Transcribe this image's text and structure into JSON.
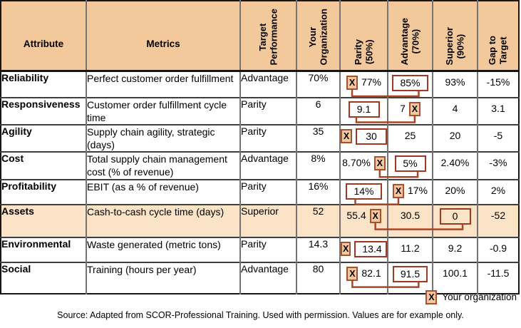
{
  "table": {
    "columns": [
      {
        "id": "attribute",
        "label": "Attribute"
      },
      {
        "id": "metrics",
        "label": "Metrics"
      },
      {
        "id": "target-performance",
        "label": "Target\nPerformance"
      },
      {
        "id": "your-organization",
        "label": "Your\nOrganization"
      },
      {
        "id": "parity",
        "label": "Parity\n(50%)"
      },
      {
        "id": "advantage",
        "label": "Advantage\n(70%)"
      },
      {
        "id": "superior",
        "label": "Superior\n(90%)"
      },
      {
        "id": "gap-to-target",
        "label": "Gap to\nTarget"
      }
    ],
    "rows": [
      {
        "attribute": "Reliability",
        "metrics": "Perfect customer order fulfillment",
        "target": "Advantage",
        "your_org": "70%",
        "highlight": false,
        "connector": true,
        "cells": {
          "parity": {
            "x": "before",
            "value": "77%",
            "boxed": false
          },
          "advantage": {
            "value": "85%",
            "boxed": true
          },
          "superior": {
            "value": "93%",
            "boxed": false
          },
          "gap": {
            "value": "-15%",
            "boxed": false
          }
        }
      },
      {
        "attribute": "Responsiveness",
        "metrics": "Customer order fulfillment cycle time",
        "target": "Parity",
        "your_org": "6",
        "highlight": false,
        "connector": true,
        "cells": {
          "parity": {
            "value": "9.1",
            "boxed": true
          },
          "advantage": {
            "x": "after",
            "value": "7",
            "boxed": false
          },
          "superior": {
            "value": "4",
            "boxed": false
          },
          "gap": {
            "value": "3.1",
            "boxed": false
          }
        }
      },
      {
        "attribute": "Agility",
        "metrics": "Supply chain agility, strategic (days)",
        "target": "Parity",
        "your_org": "35",
        "highlight": false,
        "connector": false,
        "cells": {
          "parity": {
            "x": "before",
            "value": "30",
            "boxed": true
          },
          "advantage": {
            "value": "25",
            "boxed": false
          },
          "superior": {
            "value": "20",
            "boxed": false
          },
          "gap": {
            "value": "-5",
            "boxed": false
          }
        }
      },
      {
        "attribute": "Cost",
        "metrics": "Total supply chain management cost (% of revenue)",
        "target": "Advantage",
        "your_org": "8%",
        "highlight": false,
        "connector": true,
        "cells": {
          "parity": {
            "x": "after",
            "value": "8.70%",
            "boxed": false
          },
          "advantage": {
            "value": "5%",
            "boxed": true
          },
          "superior": {
            "value": "2.40%",
            "boxed": false
          },
          "gap": {
            "value": "-3%",
            "boxed": false
          }
        }
      },
      {
        "attribute": "Profitability",
        "metrics": "EBIT (as a % of revenue)",
        "target": "Parity",
        "your_org": "16%",
        "highlight": false,
        "connector": true,
        "cells": {
          "parity": {
            "value": "14%",
            "boxed": true
          },
          "advantage": {
            "x": "before",
            "value": "17%",
            "boxed": false
          },
          "superior": {
            "value": "20%",
            "boxed": false
          },
          "gap": {
            "value": "2%",
            "boxed": false
          }
        }
      },
      {
        "attribute": "Assets",
        "metrics": "Cash-to-cash cycle time (days)",
        "target": "Superior",
        "your_org": "52",
        "highlight": true,
        "connector": true,
        "cells": {
          "parity": {
            "x": "after",
            "value": "55.4",
            "boxed": false
          },
          "advantage": {
            "value": "30.5",
            "boxed": false
          },
          "superior": {
            "value": "0",
            "boxed": true
          },
          "gap": {
            "value": "-52",
            "boxed": false
          }
        }
      },
      {
        "attribute": "Environmental",
        "metrics": "Waste generated (metric tons)",
        "target": "Parity",
        "your_org": "14.3",
        "highlight": false,
        "connector": false,
        "cells": {
          "parity": {
            "x": "before",
            "value": "13.4",
            "boxed": true
          },
          "advantage": {
            "value": "11.2",
            "boxed": false
          },
          "superior": {
            "value": "9.2",
            "boxed": false
          },
          "gap": {
            "value": "-0.9",
            "boxed": false
          }
        }
      },
      {
        "attribute": "Social",
        "metrics": "Training (hours per year)",
        "target": "Advantage",
        "your_org": "80",
        "highlight": false,
        "connector": true,
        "cells": {
          "parity": {
            "x": "before",
            "value": "82.1",
            "boxed": false
          },
          "advantage": {
            "value": "91.5",
            "boxed": true
          },
          "superior": {
            "value": "100.1",
            "boxed": false
          },
          "gap": {
            "value": "-11.5",
            "boxed": false
          }
        }
      }
    ]
  },
  "legend": {
    "marker": "X",
    "label": "Your organization"
  },
  "source": "Source: Adapted from SCOR-Professional Training. Used with permission. Values are for example only.",
  "colors": {
    "header_bg": "#F3C99C",
    "highlight_bg": "#FAE3C6",
    "box_border": "#9E3A20",
    "connector": "#A84727",
    "marker_bg": "#F3C89E",
    "marker_border": "#A8512E"
  }
}
